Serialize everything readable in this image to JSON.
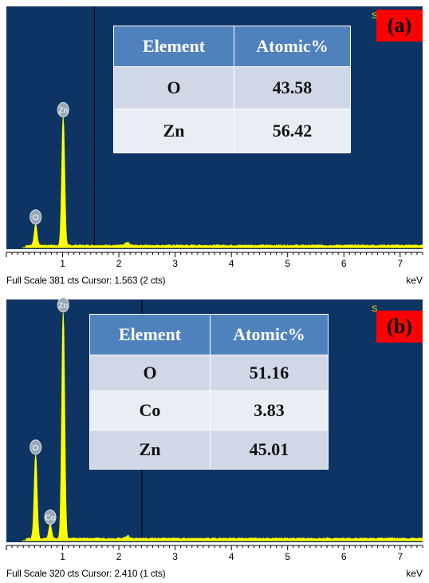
{
  "chart_data": [
    {
      "type": "line",
      "panel_label": "(a)",
      "xlabel": "keV",
      "x_ticks": [
        1,
        2,
        3,
        4,
        5,
        6,
        7
      ],
      "xlim": [
        0.0,
        7.4
      ],
      "footer": "Full Scale 381 cts Cursor: 1.563  (2 cts)",
      "cursor_kev": 1.563,
      "peaks": [
        {
          "label": "O",
          "kev": 0.52,
          "height": 0.09
        },
        {
          "label": "Zn",
          "kev": 1.01,
          "height": 0.55
        }
      ],
      "table": {
        "headers": [
          "Element",
          "Atomic%"
        ],
        "rows": [
          {
            "element": "O",
            "atomic": "43.58"
          },
          {
            "element": "Zn",
            "atomic": "56.42"
          }
        ]
      },
      "colors": {
        "background": "#0e3463",
        "spectrum": "#ffff00",
        "label_tag": "#ff0000",
        "table_header": "#4f81bd"
      }
    },
    {
      "type": "line",
      "panel_label": "(b)",
      "xlabel": "keV",
      "x_ticks": [
        1,
        2,
        3,
        4,
        5,
        6,
        7
      ],
      "xlim": [
        0.0,
        7.4
      ],
      "footer": "Full Scale 320 cts Cursor: 2.410  (1 cts)",
      "cursor_kev": 2.41,
      "peaks": [
        {
          "label": "O",
          "kev": 0.52,
          "height": 0.36
        },
        {
          "label": "Co",
          "kev": 0.78,
          "height": 0.06
        },
        {
          "label": "Zn",
          "kev": 1.01,
          "height": 0.97
        }
      ],
      "table": {
        "headers": [
          "Element",
          "Atomic%"
        ],
        "rows": [
          {
            "element": "O",
            "atomic": "51.16"
          },
          {
            "element": "Co",
            "atomic": "3.83"
          },
          {
            "element": "Zn",
            "atomic": "45.01"
          }
        ]
      },
      "colors": {
        "background": "#0e3463",
        "spectrum": "#ffff00",
        "label_tag": "#ff0000",
        "table_header": "#4f81bd"
      }
    }
  ]
}
